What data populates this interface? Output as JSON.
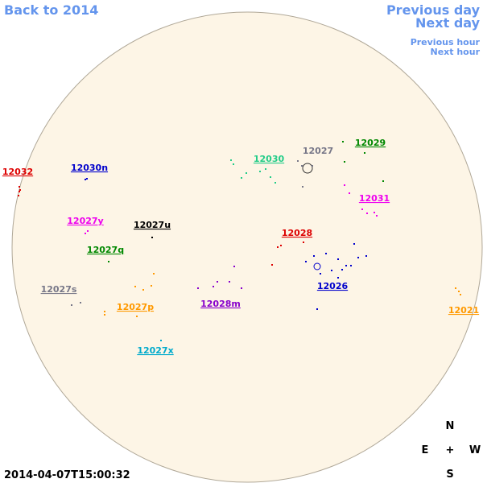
{
  "navigation": {
    "back": "Back to 2014",
    "previous_day": "Previous day",
    "next_day": "Next day",
    "previous_hour": "Previous hour",
    "next_hour": "Next hour"
  },
  "regions": [
    {
      "label": "12032"
    },
    {
      "label": "12030n"
    },
    {
      "label": "12027y"
    },
    {
      "label": "12027u"
    },
    {
      "label": "12027q"
    },
    {
      "label": "12027s"
    },
    {
      "label": "12027p"
    },
    {
      "label": "12028m"
    },
    {
      "label": "12027x"
    },
    {
      "label": "12030"
    },
    {
      "label": "12027"
    },
    {
      "label": "12029"
    },
    {
      "label": "12031"
    },
    {
      "label": "12028"
    },
    {
      "label": "12026"
    },
    {
      "label": "12021"
    }
  ],
  "timestamp": "2014-04-07T15:00:32",
  "compass": {
    "north": "N",
    "east": "E",
    "center": "+",
    "west": "W",
    "south": "S"
  }
}
